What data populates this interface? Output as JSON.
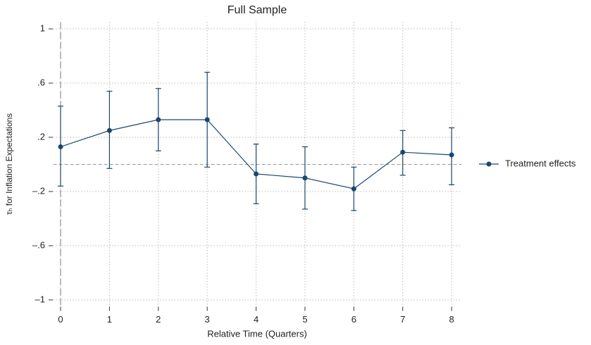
{
  "chart_data": {
    "type": "line",
    "title": "Full Sample",
    "xlabel": "Relative Time (Quarters)",
    "ylabel": "τₕ for Inflation Expectations",
    "x": [
      0,
      1,
      2,
      3,
      4,
      5,
      6,
      7,
      8
    ],
    "series": [
      {
        "name": "Treatment effects",
        "color": "#1a476f",
        "values": [
          0.13,
          0.25,
          0.33,
          0.33,
          -0.07,
          -0.1,
          -0.18,
          0.09,
          0.07
        ],
        "ci_lower": [
          -0.16,
          -0.03,
          0.1,
          -0.02,
          -0.29,
          -0.33,
          -0.34,
          -0.08,
          -0.15
        ],
        "ci_upper": [
          0.43,
          0.54,
          0.56,
          0.68,
          0.15,
          0.13,
          -0.02,
          0.25,
          0.27
        ]
      }
    ],
    "xlim": [
      -0.15,
      8.2
    ],
    "xticks": [
      0,
      1,
      2,
      3,
      4,
      5,
      6,
      7,
      8
    ],
    "ylim": [
      -1.05,
      1.05
    ],
    "yticks": [
      {
        "value": -1,
        "label": "–1"
      },
      {
        "value": -0.6,
        "label": "–.6"
      },
      {
        "value": -0.2,
        "label": "–.2"
      },
      {
        "value": 0.2,
        "label": ".2"
      },
      {
        "value": 0.6,
        "label": ".6"
      },
      1
    ],
    "hline": 0,
    "vline": 0,
    "grid": true,
    "legend": "right"
  }
}
